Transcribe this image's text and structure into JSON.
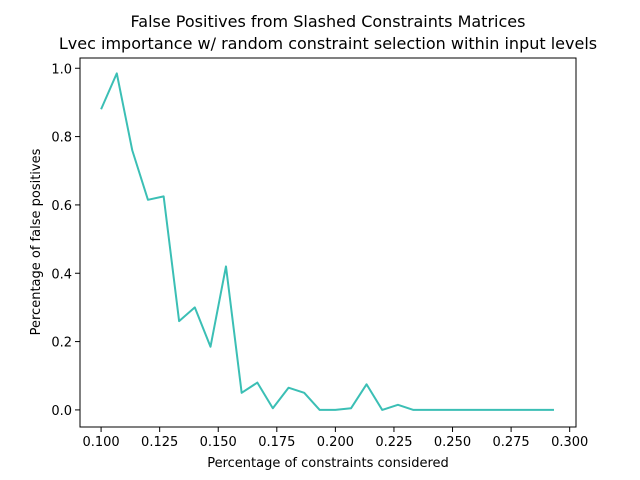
{
  "chart_data": {
    "type": "line",
    "title_line1": "False Positives from Slashed Constraints Matrices",
    "title_line2": "Lvec importance w/ random constraint selection within input levels",
    "xlabel": "Percentage of constraints considered",
    "ylabel": "Percentage of false positives",
    "xlim": [
      0.091,
      0.3027
    ],
    "ylim": [
      -0.05,
      1.03
    ],
    "xticks": [
      0.1,
      0.125,
      0.15,
      0.175,
      0.2,
      0.225,
      0.25,
      0.275,
      0.3
    ],
    "xtick_labels": [
      "0.100",
      "0.125",
      "0.150",
      "0.175",
      "0.200",
      "0.225",
      "0.250",
      "0.275",
      "0.300"
    ],
    "yticks": [
      0.0,
      0.2,
      0.4,
      0.6,
      0.8,
      1.0
    ],
    "ytick_labels": [
      "0.0",
      "0.2",
      "0.4",
      "0.6",
      "0.8",
      "1.0"
    ],
    "grid": false,
    "series": [
      {
        "color": "#3bbfb5",
        "x": [
          0.1,
          0.1067,
          0.1133,
          0.12,
          0.1267,
          0.1333,
          0.14,
          0.1467,
          0.1533,
          0.16,
          0.1667,
          0.1733,
          0.18,
          0.1867,
          0.1933,
          0.2,
          0.2067,
          0.2133,
          0.22,
          0.2267,
          0.2333,
          0.24,
          0.2467,
          0.2533,
          0.26,
          0.2667,
          0.2733,
          0.28,
          0.2867,
          0.2933
        ],
        "y": [
          0.88,
          0.985,
          0.76,
          0.615,
          0.625,
          0.26,
          0.3,
          0.185,
          0.42,
          0.05,
          0.08,
          0.005,
          0.065,
          0.05,
          0.0,
          0.0,
          0.005,
          0.075,
          0.0,
          0.015,
          0.0,
          0.0,
          0.0,
          0.0,
          0.0,
          0.0,
          0.0,
          0.0,
          0.0,
          0.0
        ]
      }
    ]
  }
}
